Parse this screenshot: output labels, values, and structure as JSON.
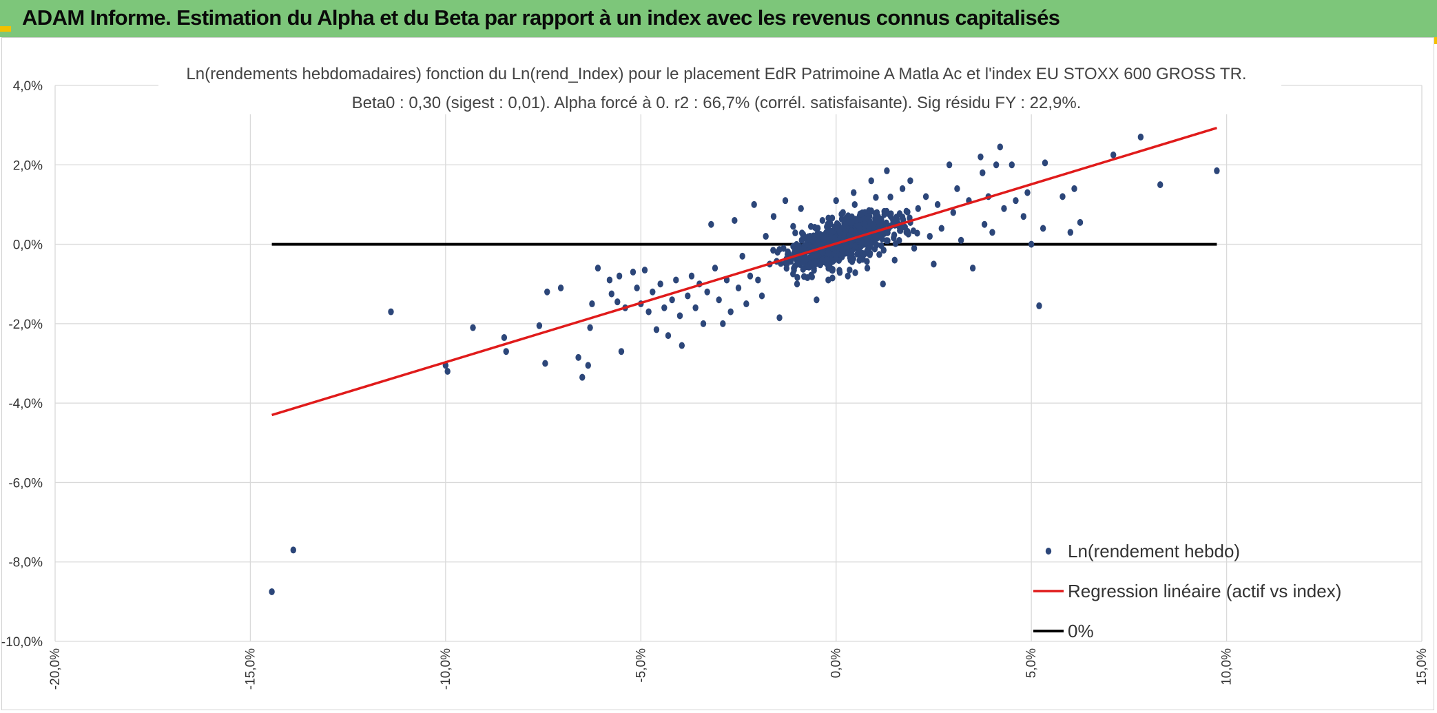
{
  "banner": {
    "title": "ADAM Informe. Estimation du Alpha et du Beta par rapport à un index avec les revenus connus capitalisés"
  },
  "colors": {
    "banner": "#7dc67a",
    "corner": "#f2c100",
    "points": "#2c4679",
    "regression": "#e01b1b",
    "zero_line": "#000000",
    "grid": "#d9d9d9"
  },
  "chart_data": {
    "type": "scatter",
    "title": "Ln(rendements hebdomadaires) fonction du Ln(rend_Index) pour le placement EdR Patrimoine A Matla Ac et l'index EU STOXX 600 GROSS TR.",
    "subtitle": "Beta0 : 0,30 (sigest : 0,01). Alpha forcé à 0. r2 : 66,7% (corrél. satisfaisante). Sig résidu FY : 22,9%.",
    "xlim": [
      -20,
      15
    ],
    "ylim": [
      -10,
      4
    ],
    "x_ticks": [
      -20,
      -15,
      -10,
      -5,
      0,
      5,
      10,
      15
    ],
    "y_ticks": [
      4,
      2,
      0,
      -2,
      -4,
      -6,
      -8,
      -10
    ],
    "x_tick_labels": [
      "-20,0%",
      "-15,0%",
      "-10,0%",
      "-5,0%",
      "0,0%",
      "5,0%",
      "10,0%",
      "15,0%"
    ],
    "y_tick_labels": [
      "4,0%",
      "2,0%",
      "0,0%",
      "-2,0%",
      "-4,0%",
      "-6,0%",
      "-8,0%",
      "-10,0%"
    ],
    "grid": true,
    "legend_position": "bottom-right",
    "series": [
      {
        "name": "Ln(rendement hebdo)",
        "kind": "scatter",
        "color": "#2c4679",
        "points": [
          [
            -14.45,
            -8.75
          ],
          [
            -13.9,
            -7.7
          ],
          [
            -11.4,
            -1.7
          ],
          [
            -10.0,
            -3.05
          ],
          [
            -9.95,
            -3.2
          ],
          [
            -9.3,
            -2.1
          ],
          [
            -8.5,
            -2.35
          ],
          [
            -8.45,
            -2.7
          ],
          [
            -7.6,
            -2.05
          ],
          [
            -7.45,
            -3.0
          ],
          [
            -7.4,
            -1.2
          ],
          [
            -7.05,
            -1.1
          ],
          [
            -6.6,
            -2.85
          ],
          [
            -6.5,
            -3.35
          ],
          [
            -6.35,
            -3.05
          ],
          [
            -6.3,
            -2.1
          ],
          [
            -6.25,
            -1.5
          ],
          [
            -6.1,
            -0.6
          ],
          [
            -5.8,
            -0.9
          ],
          [
            -5.75,
            -1.25
          ],
          [
            -5.6,
            -1.45
          ],
          [
            -5.55,
            -0.8
          ],
          [
            -5.5,
            -2.7
          ],
          [
            -5.4,
            -1.6
          ],
          [
            -5.2,
            -0.7
          ],
          [
            -5.1,
            -1.1
          ],
          [
            -5.0,
            -1.5
          ],
          [
            -4.9,
            -0.65
          ],
          [
            -4.8,
            -1.7
          ],
          [
            -4.7,
            -1.2
          ],
          [
            -4.6,
            -2.15
          ],
          [
            -4.5,
            -1.0
          ],
          [
            -4.4,
            -1.6
          ],
          [
            -4.3,
            -2.3
          ],
          [
            -4.2,
            -1.4
          ],
          [
            -4.1,
            -0.9
          ],
          [
            -4.0,
            -1.8
          ],
          [
            -3.95,
            -2.55
          ],
          [
            -3.8,
            -1.3
          ],
          [
            -3.7,
            -0.8
          ],
          [
            -3.6,
            -1.6
          ],
          [
            -3.5,
            -1.0
          ],
          [
            -3.4,
            -2.0
          ],
          [
            -3.3,
            -1.2
          ],
          [
            -3.2,
            0.5
          ],
          [
            -3.1,
            -0.6
          ],
          [
            -3.0,
            -1.4
          ],
          [
            -2.9,
            -2.0
          ],
          [
            -2.8,
            -0.9
          ],
          [
            -2.7,
            -1.7
          ],
          [
            -2.6,
            0.6
          ],
          [
            -2.5,
            -1.1
          ],
          [
            -2.4,
            -0.3
          ],
          [
            -2.3,
            -1.5
          ],
          [
            -2.2,
            -0.8
          ],
          [
            -2.1,
            1.0
          ],
          [
            -2.0,
            -0.9
          ],
          [
            -1.9,
            -1.3
          ],
          [
            -1.8,
            0.2
          ],
          [
            -1.7,
            -0.5
          ],
          [
            -1.6,
            0.7
          ],
          [
            -1.5,
            -0.2
          ],
          [
            -1.45,
            -1.85
          ],
          [
            -1.3,
            1.1
          ],
          [
            -1.2,
            -0.4
          ],
          [
            -1.1,
            0.45
          ],
          [
            -1.0,
            -1.0
          ],
          [
            -0.9,
            0.9
          ],
          [
            -0.8,
            -0.3
          ],
          [
            -0.6,
            0.1
          ],
          [
            -0.5,
            -1.4
          ],
          [
            -0.35,
            0.6
          ],
          [
            -0.2,
            -0.9
          ],
          [
            0.0,
            1.1
          ],
          [
            0.1,
            0.3
          ],
          [
            0.3,
            -0.8
          ],
          [
            0.45,
            1.3
          ],
          [
            0.6,
            0.4
          ],
          [
            0.8,
            -0.6
          ],
          [
            0.9,
            1.6
          ],
          [
            1.0,
            0.2
          ],
          [
            1.2,
            -1.0
          ],
          [
            1.3,
            1.85
          ],
          [
            1.4,
            0.7
          ],
          [
            1.5,
            -0.4
          ],
          [
            1.7,
            1.4
          ],
          [
            1.8,
            0.3
          ],
          [
            1.9,
            1.6
          ],
          [
            2.0,
            -0.1
          ],
          [
            2.1,
            0.9
          ],
          [
            2.3,
            1.2
          ],
          [
            2.4,
            0.2
          ],
          [
            2.5,
            -0.5
          ],
          [
            2.6,
            1.0
          ],
          [
            2.7,
            0.4
          ],
          [
            2.9,
            2.0
          ],
          [
            3.0,
            0.8
          ],
          [
            3.1,
            1.4
          ],
          [
            3.2,
            0.1
          ],
          [
            3.4,
            1.1
          ],
          [
            3.5,
            -0.6
          ],
          [
            3.7,
            2.2
          ],
          [
            3.75,
            1.8
          ],
          [
            3.8,
            0.5
          ],
          [
            3.9,
            1.2
          ],
          [
            4.0,
            0.3
          ],
          [
            4.1,
            2.0
          ],
          [
            4.2,
            2.45
          ],
          [
            4.3,
            0.9
          ],
          [
            4.5,
            2.0
          ],
          [
            4.6,
            1.1
          ],
          [
            4.8,
            0.7
          ],
          [
            4.9,
            1.3
          ],
          [
            5.0,
            0.0
          ],
          [
            5.2,
            -1.55
          ],
          [
            5.3,
            0.4
          ],
          [
            5.35,
            2.05
          ],
          [
            5.8,
            1.2
          ],
          [
            6.0,
            0.3
          ],
          [
            6.1,
            1.4
          ],
          [
            6.25,
            0.55
          ],
          [
            7.1,
            2.25
          ],
          [
            7.8,
            2.7
          ],
          [
            8.3,
            1.5
          ],
          [
            9.75,
            1.85
          ]
        ]
      },
      {
        "name": "Regression linéaire (actif vs index)",
        "kind": "line",
        "color": "#e01b1b",
        "points": [
          [
            -14.45,
            -4.3
          ],
          [
            9.75,
            2.93
          ]
        ]
      },
      {
        "name": "0%",
        "kind": "line",
        "color": "#000000",
        "points": [
          [
            -14.45,
            0
          ],
          [
            9.75,
            0
          ]
        ]
      }
    ]
  }
}
